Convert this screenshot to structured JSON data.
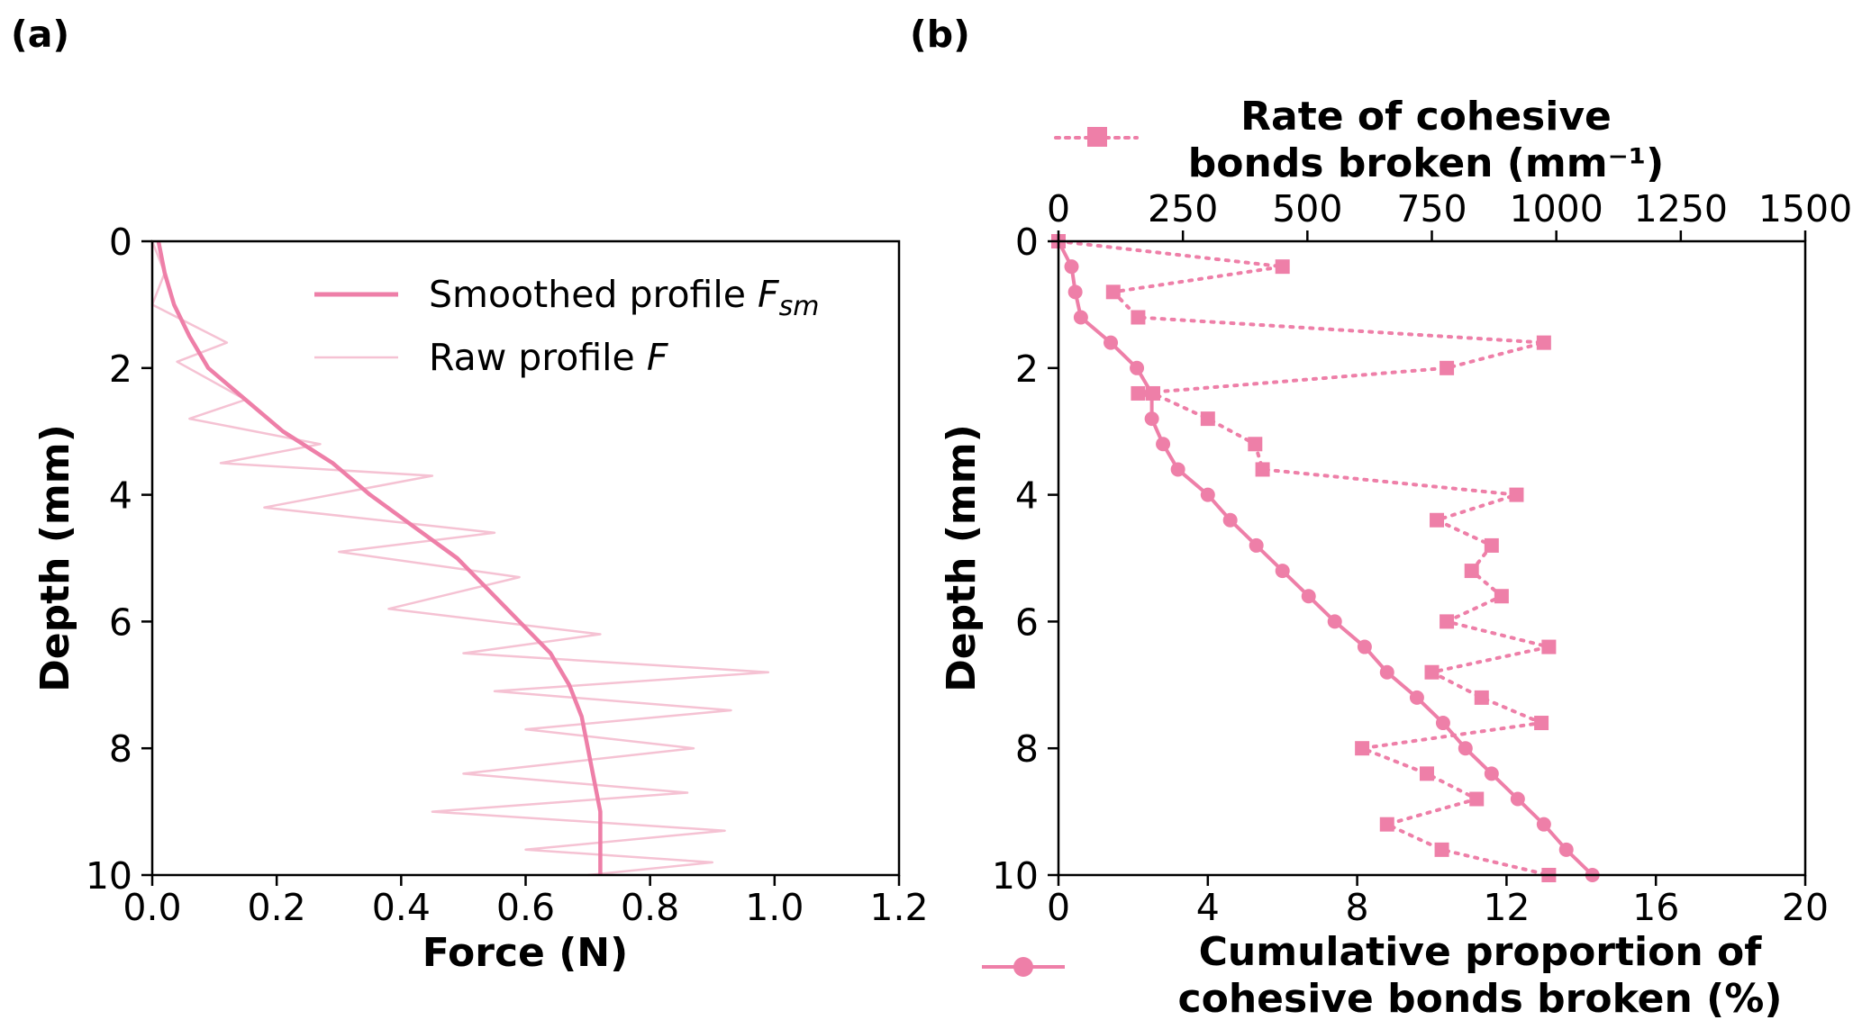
{
  "colors": {
    "pink": "#EE7FA8",
    "pink_light": "#F5C2D3"
  },
  "chart_data": [
    {
      "panel_label": "(a)",
      "type": "line",
      "xlabel": "Force (N)",
      "ylabel": "Depth (mm)",
      "xlim": [
        0.0,
        1.2
      ],
      "ylim": [
        0,
        10
      ],
      "y_inverted": true,
      "xticks": [
        "0.0",
        "0.2",
        "0.4",
        "0.6",
        "0.8",
        "1.0",
        "1.2"
      ],
      "yticks": [
        "0",
        "2",
        "4",
        "6",
        "8",
        "10"
      ],
      "legend_position": "top-right",
      "legend": {
        "smoothed_prefix": "Smoothed profile ",
        "smoothed_var": "F",
        "smoothed_sub": "sm",
        "raw_prefix": "Raw profile ",
        "raw_var": "F"
      },
      "series": [
        {
          "name": "Smoothed profile F_sm",
          "points": [
            [
              0.01,
              0.0
            ],
            [
              0.02,
              0.5
            ],
            [
              0.035,
              1.0
            ],
            [
              0.06,
              1.5
            ],
            [
              0.09,
              2.0
            ],
            [
              0.15,
              2.5
            ],
            [
              0.21,
              3.0
            ],
            [
              0.29,
              3.5
            ],
            [
              0.35,
              4.0
            ],
            [
              0.42,
              4.5
            ],
            [
              0.49,
              5.0
            ],
            [
              0.54,
              5.5
            ],
            [
              0.59,
              6.0
            ],
            [
              0.64,
              6.5
            ],
            [
              0.67,
              7.0
            ],
            [
              0.69,
              7.5
            ],
            [
              0.7,
              8.0
            ],
            [
              0.71,
              8.5
            ],
            [
              0.72,
              9.0
            ],
            [
              0.72,
              9.5
            ],
            [
              0.72,
              10.0
            ]
          ]
        },
        {
          "name": "Raw profile F",
          "points": [
            [
              0.0,
              0.0
            ],
            [
              0.02,
              0.5
            ],
            [
              0.0,
              1.0
            ],
            [
              0.12,
              1.6
            ],
            [
              0.04,
              1.9
            ],
            [
              0.15,
              2.5
            ],
            [
              0.06,
              2.8
            ],
            [
              0.27,
              3.2
            ],
            [
              0.11,
              3.5
            ],
            [
              0.45,
              3.7
            ],
            [
              0.18,
              4.2
            ],
            [
              0.55,
              4.6
            ],
            [
              0.3,
              4.9
            ],
            [
              0.59,
              5.3
            ],
            [
              0.38,
              5.8
            ],
            [
              0.72,
              6.2
            ],
            [
              0.5,
              6.5
            ],
            [
              0.99,
              6.8
            ],
            [
              0.55,
              7.1
            ],
            [
              0.93,
              7.4
            ],
            [
              0.6,
              7.7
            ],
            [
              0.87,
              8.0
            ],
            [
              0.5,
              8.4
            ],
            [
              0.86,
              8.7
            ],
            [
              0.45,
              9.0
            ],
            [
              0.92,
              9.3
            ],
            [
              0.6,
              9.6
            ],
            [
              0.9,
              9.8
            ],
            [
              0.7,
              10.0
            ]
          ]
        }
      ]
    },
    {
      "panel_label": "(b)",
      "type": "line",
      "ylabel": "Depth (mm)",
      "ylim": [
        0,
        10
      ],
      "y_inverted": true,
      "yticks": [
        "0",
        "2",
        "4",
        "6",
        "8",
        "10"
      ],
      "bottom_axis": {
        "xlabel_line1": "Cumulative proportion of",
        "xlabel_line2": "cohesive bonds broken (%)",
        "xlim": [
          0,
          20
        ],
        "xticks": [
          "0",
          "4",
          "8",
          "12",
          "16",
          "20"
        ]
      },
      "top_axis": {
        "xlabel_line1": "Rate of cohesive",
        "xlabel_line2": "bonds broken (mm⁻¹)",
        "xlim": [
          0,
          1500
        ],
        "xticks": [
          "0",
          "250",
          "500",
          "750",
          "1000",
          "1250",
          "1500"
        ]
      },
      "series": [
        {
          "name": "Cumulative proportion of cohesive bonds broken (%)",
          "axis": "bottom",
          "marker": "circle",
          "points": [
            [
              0.0,
              0.0
            ],
            [
              0.35,
              0.4
            ],
            [
              0.45,
              0.8
            ],
            [
              0.6,
              1.2
            ],
            [
              1.4,
              1.6
            ],
            [
              2.1,
              2.0
            ],
            [
              2.5,
              2.4
            ],
            [
              2.5,
              2.8
            ],
            [
              2.8,
              3.2
            ],
            [
              3.2,
              3.6
            ],
            [
              4.0,
              4.0
            ],
            [
              4.6,
              4.4
            ],
            [
              5.3,
              4.8
            ],
            [
              6.0,
              5.2
            ],
            [
              6.7,
              5.6
            ],
            [
              7.4,
              6.0
            ],
            [
              8.2,
              6.4
            ],
            [
              8.8,
              6.8
            ],
            [
              9.6,
              7.2
            ],
            [
              10.3,
              7.6
            ],
            [
              10.9,
              8.0
            ],
            [
              11.6,
              8.4
            ],
            [
              12.3,
              8.8
            ],
            [
              13.0,
              9.2
            ],
            [
              13.6,
              9.6
            ],
            [
              14.3,
              10.0
            ]
          ]
        },
        {
          "name": "Rate of cohesive bonds broken (mm⁻¹)",
          "axis": "top",
          "marker": "square",
          "points": [
            [
              0,
              0.0
            ],
            [
              450,
              0.4
            ],
            [
              110,
              0.8
            ],
            [
              160,
              1.2
            ],
            [
              975,
              1.6
            ],
            [
              780,
              2.0
            ],
            [
              160,
              2.4
            ],
            [
              190,
              2.4
            ],
            [
              300,
              2.8
            ],
            [
              395,
              3.2
            ],
            [
              410,
              3.6
            ],
            [
              920,
              4.0
            ],
            [
              760,
              4.4
            ],
            [
              870,
              4.8
            ],
            [
              830,
              5.2
            ],
            [
              890,
              5.6
            ],
            [
              780,
              6.0
            ],
            [
              985,
              6.4
            ],
            [
              750,
              6.8
            ],
            [
              850,
              7.2
            ],
            [
              970,
              7.6
            ],
            [
              610,
              8.0
            ],
            [
              740,
              8.4
            ],
            [
              840,
              8.8
            ],
            [
              660,
              9.2
            ],
            [
              770,
              9.6
            ],
            [
              985,
              10.0
            ]
          ]
        }
      ]
    }
  ]
}
